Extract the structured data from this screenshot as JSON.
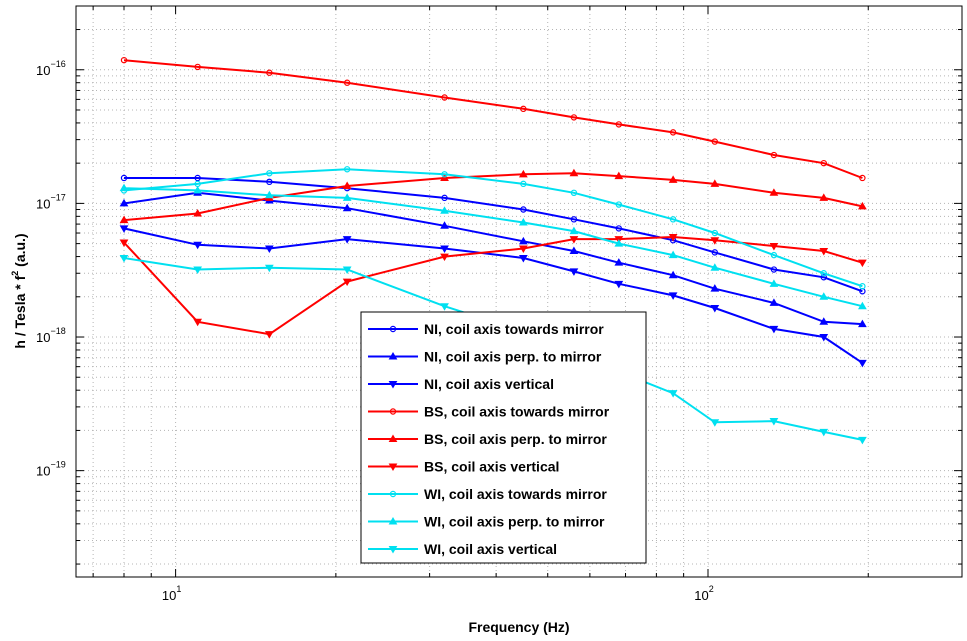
{
  "chart_data": {
    "type": "line",
    "xlabel": "Frequency (Hz)",
    "ylabel": "h / Tesla * f",
    "ylabel_sup": "2",
    "ylabel_suffix": " (a.u.)",
    "xscale": "log",
    "yscale": "log",
    "xlim": [
      6.5,
      300
    ],
    "ylim": [
      1.6e-20,
      3e-16
    ],
    "grid": true,
    "legend_position": "bottom-center",
    "x_ticks": [
      {
        "value": 10,
        "base": "10",
        "exp": "1"
      },
      {
        "value": 100,
        "base": "10",
        "exp": "2"
      }
    ],
    "y_ticks": [
      {
        "value": 1e-16,
        "base": "10",
        "exp": "−16"
      },
      {
        "value": 1e-17,
        "base": "10",
        "exp": "−17"
      },
      {
        "value": 1e-18,
        "base": "10",
        "exp": "−18"
      },
      {
        "value": 1e-19,
        "base": "10",
        "exp": "−19"
      }
    ],
    "series": [
      {
        "name": "NI, coil axis towards mirror",
        "color": "#0000ff",
        "marker": "circle",
        "x": [
          8,
          11,
          15,
          21,
          32,
          45,
          56,
          68,
          86,
          103,
          133,
          165,
          195
        ],
        "y": [
          1.55e-17,
          1.55e-17,
          1.45e-17,
          1.3e-17,
          1.1e-17,
          9e-18,
          7.6e-18,
          6.5e-18,
          5.3e-18,
          4.3e-18,
          3.2e-18,
          2.8e-18,
          2.2e-18
        ]
      },
      {
        "name": "NI, coil axis perp. to mirror",
        "color": "#0000ff",
        "marker": "triangle-up",
        "x": [
          8,
          11,
          15,
          21,
          32,
          45,
          56,
          68,
          86,
          103,
          133,
          165,
          195
        ],
        "y": [
          1e-17,
          1.2e-17,
          1.05e-17,
          9.2e-18,
          6.8e-18,
          5.2e-18,
          4.4e-18,
          3.6e-18,
          2.9e-18,
          2.3e-18,
          1.8e-18,
          1.3e-18,
          1.25e-18
        ]
      },
      {
        "name": "NI, coil axis vertical",
        "color": "#0000ff",
        "marker": "triangle-down",
        "x": [
          8,
          11,
          15,
          21,
          32,
          45,
          56,
          68,
          86,
          103,
          133,
          165,
          195
        ],
        "y": [
          6.5e-18,
          4.9e-18,
          4.6e-18,
          5.4e-18,
          4.6e-18,
          3.9e-18,
          3.1e-18,
          2.5e-18,
          2.05e-18,
          1.65e-18,
          1.15e-18,
          1e-18,
          6.4e-19
        ]
      },
      {
        "name": "BS, coil axis towards mirror",
        "color": "#ff0000",
        "marker": "circle",
        "x": [
          8,
          11,
          15,
          21,
          32,
          45,
          56,
          68,
          86,
          103,
          133,
          165,
          195
        ],
        "y": [
          1.18e-16,
          1.05e-16,
          9.5e-17,
          8e-17,
          6.2e-17,
          5.1e-17,
          4.4e-17,
          3.9e-17,
          3.4e-17,
          2.9e-17,
          2.3e-17,
          2e-17,
          1.55e-17
        ]
      },
      {
        "name": "BS, coil axis perp. to mirror",
        "color": "#ff0000",
        "marker": "triangle-up",
        "x": [
          8,
          11,
          15,
          21,
          32,
          45,
          56,
          68,
          86,
          103,
          133,
          165,
          195
        ],
        "y": [
          7.5e-18,
          8.4e-18,
          1.1e-17,
          1.35e-17,
          1.55e-17,
          1.65e-17,
          1.68e-17,
          1.6e-17,
          1.5e-17,
          1.4e-17,
          1.2e-17,
          1.1e-17,
          9.5e-18
        ]
      },
      {
        "name": "BS, coil axis vertical",
        "color": "#ff0000",
        "marker": "triangle-down",
        "x": [
          8,
          11,
          15,
          21,
          32,
          45,
          56,
          68,
          86,
          103,
          133,
          165,
          195
        ],
        "y": [
          5.1e-18,
          1.3e-18,
          1.05e-18,
          2.6e-18,
          4e-18,
          4.6e-18,
          5.4e-18,
          5.4e-18,
          5.6e-18,
          5.3e-18,
          4.8e-18,
          4.4e-18,
          3.6e-18
        ]
      },
      {
        "name": "WI, coil axis towards mirror",
        "color": "#00e0f0",
        "marker": "circle",
        "x": [
          8,
          11,
          15,
          21,
          32,
          45,
          56,
          68,
          86,
          103,
          133,
          165,
          195
        ],
        "y": [
          1.25e-17,
          1.4e-17,
          1.68e-17,
          1.8e-17,
          1.65e-17,
          1.4e-17,
          1.2e-17,
          9.8e-18,
          7.6e-18,
          6e-18,
          4.1e-18,
          3e-18,
          2.4e-18
        ]
      },
      {
        "name": "WI, coil axis perp. to mirror",
        "color": "#00e0f0",
        "marker": "triangle-up",
        "x": [
          8,
          11,
          15,
          21,
          32,
          45,
          56,
          68,
          86,
          103,
          133,
          165,
          195
        ],
        "y": [
          1.3e-17,
          1.25e-17,
          1.15e-17,
          1.1e-17,
          8.8e-18,
          7.2e-18,
          6.2e-18,
          5e-18,
          4.1e-18,
          3.3e-18,
          2.5e-18,
          2e-18,
          1.7e-18
        ]
      },
      {
        "name": "WI, coil axis vertical",
        "color": "#00e0f0",
        "marker": "triangle-down",
        "x": [
          8,
          11,
          15,
          21,
          32,
          45,
          56,
          68,
          86,
          103,
          133,
          165,
          195
        ],
        "y": [
          3.9e-18,
          3.2e-18,
          3.3e-18,
          3.2e-18,
          1.7e-18,
          1.1e-18,
          7.5e-19,
          5.5e-19,
          3.8e-19,
          2.3e-19,
          2.35e-19,
          1.95e-19,
          1.7e-19
        ]
      }
    ]
  }
}
